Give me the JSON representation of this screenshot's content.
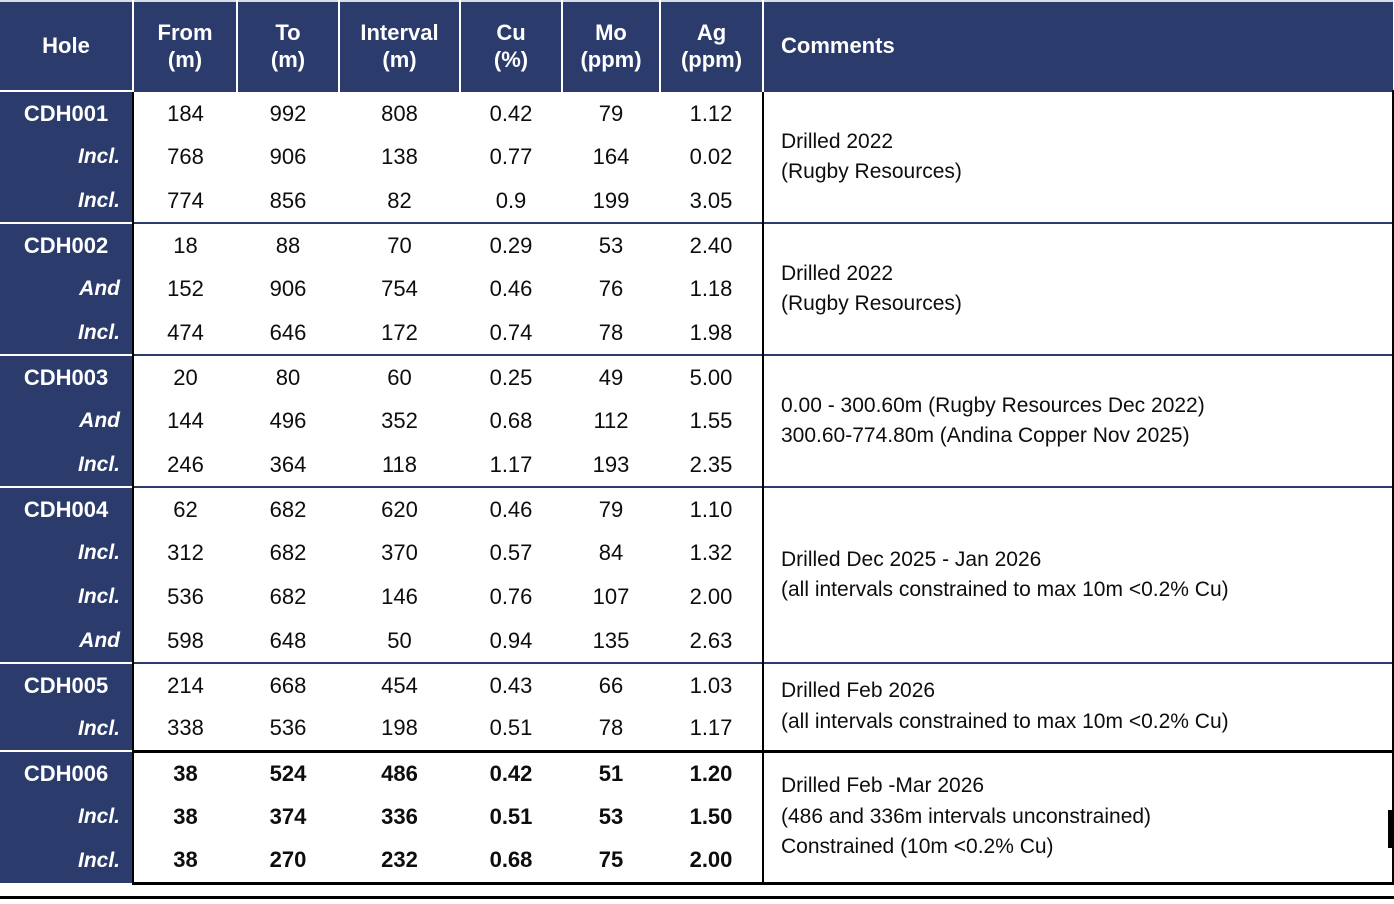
{
  "colors": {
    "navy": "#2b3b6b",
    "rule": "#000000",
    "header_text": "#ffffff",
    "body_text": "#0d0d0d"
  },
  "table": {
    "columns": [
      {
        "id": "hole",
        "label": "Hole"
      },
      {
        "id": "from",
        "label": "From\n(m)"
      },
      {
        "id": "to",
        "label": "To\n(m)"
      },
      {
        "id": "interval",
        "label": "Interval\n(m)"
      },
      {
        "id": "cu",
        "label": "Cu\n(%)"
      },
      {
        "id": "mo",
        "label": "Mo\n(ppm)"
      },
      {
        "id": "ag",
        "label": "Ag\n(ppm)"
      },
      {
        "id": "comments",
        "label": "Comments"
      }
    ],
    "groups": [
      {
        "hole": "CDH001",
        "emphasized": false,
        "comment": "Drilled 2022\n(Rugby Resources)",
        "rows": [
          {
            "label": "CDH001",
            "from": "184",
            "to": "992",
            "interval": "808",
            "cu": "0.42",
            "mo": "79",
            "ag": "1.12"
          },
          {
            "label": "Incl.",
            "from": "768",
            "to": "906",
            "interval": "138",
            "cu": "0.77",
            "mo": "164",
            "ag": "0.02"
          },
          {
            "label": "Incl.",
            "from": "774",
            "to": "856",
            "interval": "82",
            "cu": "0.9",
            "mo": "199",
            "ag": "3.05"
          }
        ]
      },
      {
        "hole": "CDH002",
        "emphasized": false,
        "comment": "Drilled 2022\n(Rugby Resources)",
        "rows": [
          {
            "label": "CDH002",
            "from": "18",
            "to": "88",
            "interval": "70",
            "cu": "0.29",
            "mo": "53",
            "ag": "2.40"
          },
          {
            "label": "And",
            "from": "152",
            "to": "906",
            "interval": "754",
            "cu": "0.46",
            "mo": "76",
            "ag": "1.18"
          },
          {
            "label": "Incl.",
            "from": "474",
            "to": "646",
            "interval": "172",
            "cu": "0.74",
            "mo": "78",
            "ag": "1.98"
          }
        ]
      },
      {
        "hole": "CDH003",
        "emphasized": false,
        "comment": "0.00 - 300.60m (Rugby Resources Dec 2022)\n300.60-774.80m (Andina Copper Nov 2025)",
        "rows": [
          {
            "label": "CDH003",
            "from": "20",
            "to": "80",
            "interval": "60",
            "cu": "0.25",
            "mo": "49",
            "ag": "5.00"
          },
          {
            "label": "And",
            "from": "144",
            "to": "496",
            "interval": "352",
            "cu": "0.68",
            "mo": "112",
            "ag": "1.55"
          },
          {
            "label": "Incl.",
            "from": "246",
            "to": "364",
            "interval": "118",
            "cu": "1.17",
            "mo": "193",
            "ag": "2.35"
          }
        ]
      },
      {
        "hole": "CDH004",
        "emphasized": false,
        "comment": "Drilled Dec 2025 - Jan 2026\n(all intervals constrained to max 10m <0.2% Cu)",
        "rows": [
          {
            "label": "CDH004",
            "from": "62",
            "to": "682",
            "interval": "620",
            "cu": "0.46",
            "mo": "79",
            "ag": "1.10"
          },
          {
            "label": "Incl.",
            "from": "312",
            "to": "682",
            "interval": "370",
            "cu": "0.57",
            "mo": "84",
            "ag": "1.32"
          },
          {
            "label": "Incl.",
            "from": "536",
            "to": "682",
            "interval": "146",
            "cu": "0.76",
            "mo": "107",
            "ag": "2.00"
          },
          {
            "label": "And",
            "from": "598",
            "to": "648",
            "interval": "50",
            "cu": "0.94",
            "mo": "135",
            "ag": "2.63"
          }
        ]
      },
      {
        "hole": "CDH005",
        "emphasized": false,
        "comment": "Drilled Feb 2026\n(all intervals constrained to max 10m <0.2% Cu)",
        "rows": [
          {
            "label": "CDH005",
            "from": "214",
            "to": "668",
            "interval": "454",
            "cu": "0.43",
            "mo": "66",
            "ag": "1.03"
          },
          {
            "label": "Incl.",
            "from": "338",
            "to": "536",
            "interval": "198",
            "cu": "0.51",
            "mo": "78",
            "ag": "1.17"
          }
        ]
      },
      {
        "hole": "CDH006",
        "emphasized": true,
        "comment": "Drilled Feb -Mar 2026\n(486 and 336m intervals unconstrained)\nConstrained (10m <0.2% Cu)",
        "rows": [
          {
            "label": "CDH006",
            "from": "38",
            "to": "524",
            "interval": "486",
            "cu": "0.42",
            "mo": "51",
            "ag": "1.20"
          },
          {
            "label": "Incl.",
            "from": "38",
            "to": "374",
            "interval": "336",
            "cu": "0.51",
            "mo": "53",
            "ag": "1.50"
          },
          {
            "label": "Incl.",
            "from": "38",
            "to": "270",
            "interval": "232",
            "cu": "0.68",
            "mo": "75",
            "ag": "2.00"
          }
        ]
      }
    ]
  }
}
